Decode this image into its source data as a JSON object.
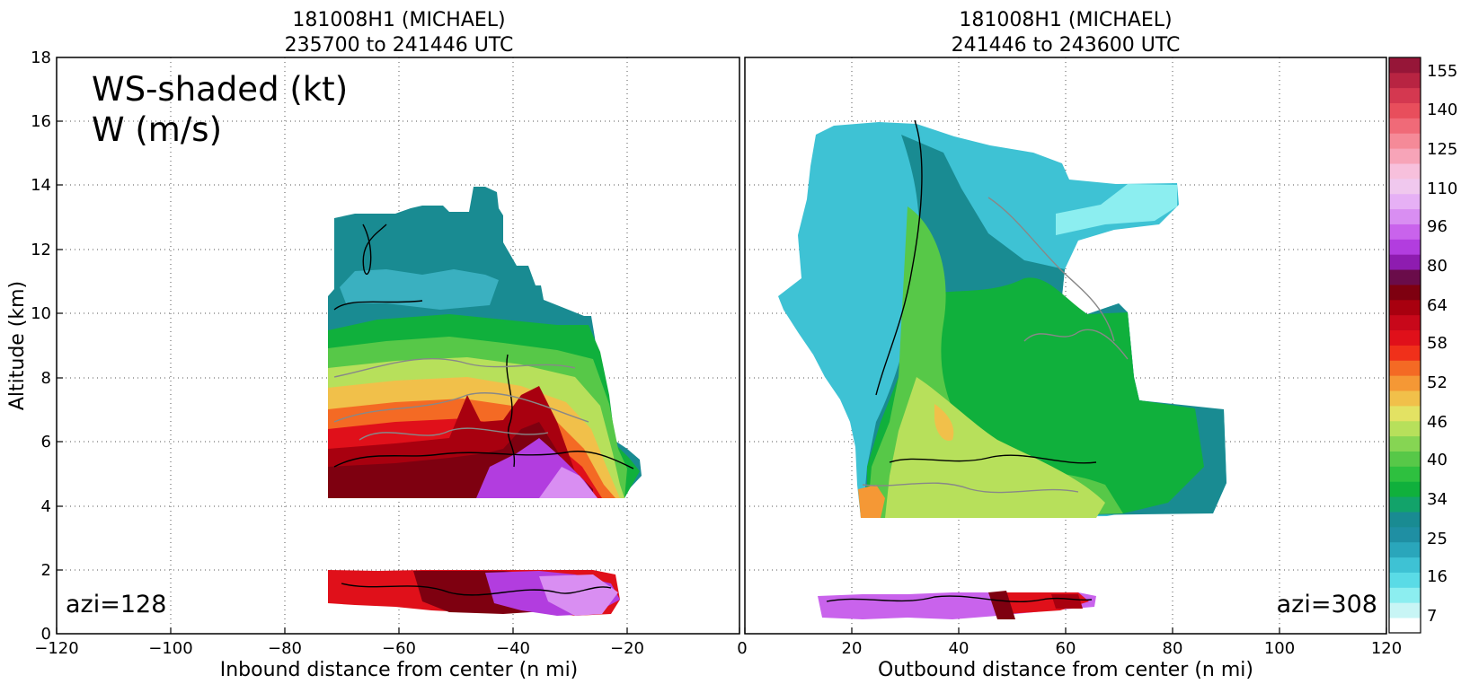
{
  "chart_data": [
    {
      "type": "heatmap",
      "panel": "left",
      "title_line1": "181008H1 (MICHAEL)",
      "title_line2": "235700 to 241446 UTC",
      "xlabel": "Inbound distance from center (n mi)",
      "ylabel": "Altitude (km)",
      "xlim": [
        -120,
        0
      ],
      "ylim": [
        0,
        18
      ],
      "xticks": [
        "−120",
        "−100",
        "−80",
        "−60",
        "−40",
        "−20",
        "0"
      ],
      "yticks": [
        "0",
        "2",
        "4",
        "6",
        "8",
        "10",
        "12",
        "14",
        "16",
        "18"
      ],
      "grid": true,
      "annotation_line1": "WS-shaded (kt)",
      "annotation_line2": "W (m/s)",
      "azimuth_label": "azi=128"
    },
    {
      "type": "heatmap",
      "panel": "right",
      "title_line1": "181008H1 (MICHAEL)",
      "title_line2": "241446 to 243600 UTC",
      "xlabel": "Outbound distance from center (n mi)",
      "xlim": [
        0,
        120
      ],
      "ylim": [
        0,
        18
      ],
      "xticks": [
        "0",
        "20",
        "40",
        "60",
        "80",
        "100",
        "120"
      ],
      "grid": true,
      "azimuth_label": "azi=308"
    }
  ],
  "colorbar": {
    "tick_labels": [
      "155",
      "140",
      "125",
      "110",
      "96",
      "80",
      "64",
      "58",
      "52",
      "46",
      "40",
      "34",
      "25",
      "16",
      "7"
    ],
    "colors": [
      "#ffffff",
      "#c8f5f5",
      "#8ceef0",
      "#5adbe6",
      "#3ec2d4",
      "#2aa6bb",
      "#1f8fa3",
      "#198b92",
      "#12a36a",
      "#10b03c",
      "#2ec03f",
      "#57c848",
      "#86d553",
      "#b7e05b",
      "#e3e263",
      "#f1c04a",
      "#f59835",
      "#f46a24",
      "#f0301a",
      "#e0101a",
      "#c8081a",
      "#a8000f",
      "#7e0010",
      "#6a0c4a",
      "#8e1cb0",
      "#b23ddf",
      "#c963ec",
      "#d98ef2",
      "#e6b0f5",
      "#f0c8ee",
      "#f7c0dc",
      "#f7a4b8",
      "#f58a98",
      "#f06a78",
      "#e84e5c",
      "#d43850",
      "#b82442",
      "#961638"
    ]
  }
}
